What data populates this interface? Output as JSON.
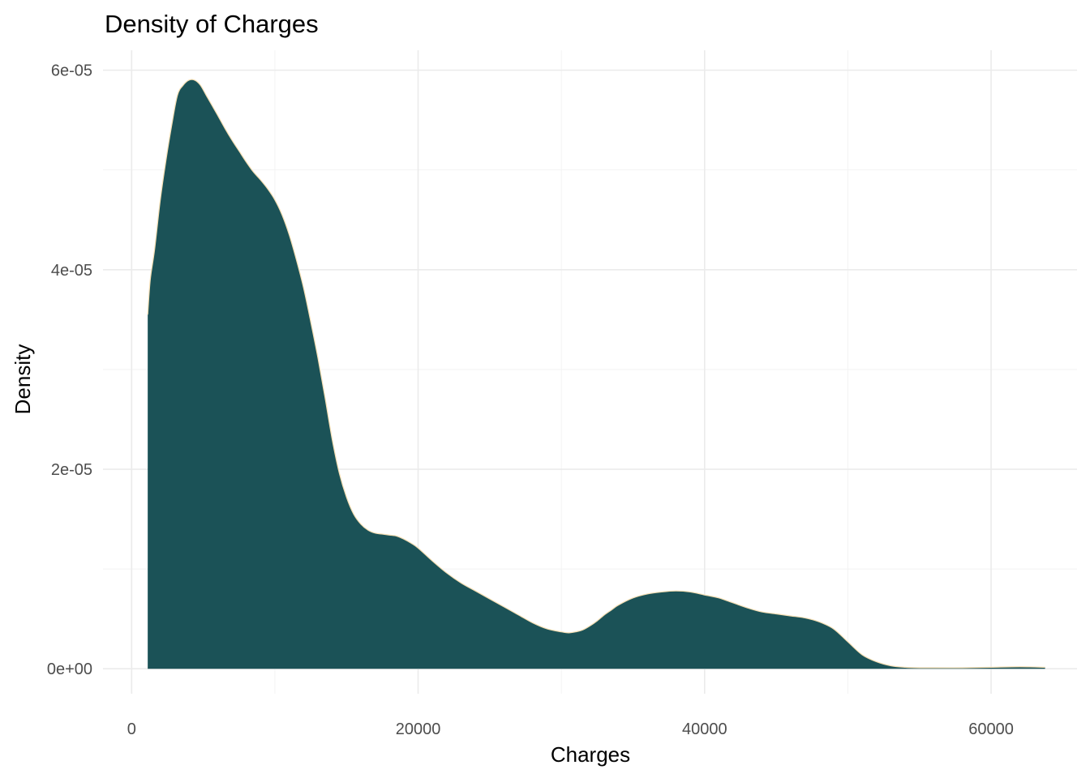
{
  "chart_data": {
    "type": "area",
    "title": "Density of Charges",
    "xlabel": "Charges",
    "ylabel": "Density",
    "xlim": [
      -2000,
      66000
    ],
    "ylim": [
      -2.5e-06,
      6.2e-05
    ],
    "x_ticks": [
      {
        "value": 0,
        "label": "0"
      },
      {
        "value": 20000,
        "label": "20000"
      },
      {
        "value": 40000,
        "label": "40000"
      },
      {
        "value": 60000,
        "label": "60000"
      }
    ],
    "y_ticks": [
      {
        "value": 0,
        "label": "0e+00"
      },
      {
        "value": 2e-05,
        "label": "2e-05"
      },
      {
        "value": 4e-05,
        "label": "4e-05"
      },
      {
        "value": 6e-05,
        "label": "6e-05"
      }
    ],
    "x_minor_ticks": [
      10000,
      30000,
      50000
    ],
    "y_minor_ticks": [
      1e-05,
      3e-05,
      5e-05
    ],
    "grid": true,
    "legend": "none",
    "fill_color": "#1b5257",
    "outline_color": "#f5deb3",
    "series": [
      {
        "x": [
          1122,
          1300,
          1600,
          2000,
          2400,
          2800,
          3200,
          3600,
          4000,
          4400,
          4800,
          5200,
          5600,
          6000,
          6500,
          7000,
          7500,
          8000,
          8500,
          9000,
          9500,
          10000,
          10500,
          11000,
          11500,
          12000,
          12500,
          13000,
          13500,
          14000,
          14500,
          15000,
          15500,
          16000,
          16500,
          17000,
          17500,
          18000,
          18500,
          19000,
          19500,
          20000,
          21000,
          22000,
          23000,
          24000,
          25000,
          26000,
          27000,
          28000,
          29000,
          30000,
          30500,
          31000,
          31500,
          32000,
          32500,
          33000,
          33500,
          34000,
          35000,
          36000,
          37000,
          38000,
          39000,
          40000,
          41000,
          42000,
          43000,
          44000,
          45000,
          46000,
          47000,
          48000,
          49000,
          50000,
          51000,
          52000,
          53000,
          54000,
          55000,
          56000,
          58000,
          60000,
          62000,
          63770
        ],
        "y": [
          3.55e-05,
          3.9e-05,
          4.2e-05,
          4.7e-05,
          5.1e-05,
          5.45e-05,
          5.75e-05,
          5.85e-05,
          5.9e-05,
          5.9e-05,
          5.85e-05,
          5.75e-05,
          5.65e-05,
          5.55e-05,
          5.42e-05,
          5.3e-05,
          5.19e-05,
          5.08e-05,
          4.98e-05,
          4.9e-05,
          4.81e-05,
          4.7e-05,
          4.55e-05,
          4.35e-05,
          4.1e-05,
          3.82e-05,
          3.48e-05,
          3.12e-05,
          2.72e-05,
          2.3e-05,
          1.96e-05,
          1.72e-05,
          1.55e-05,
          1.45e-05,
          1.39e-05,
          1.36e-05,
          1.35e-05,
          1.34e-05,
          1.33e-05,
          1.3e-05,
          1.26e-05,
          1.21e-05,
          1.08e-05,
          9.6e-06,
          8.6e-06,
          7.8e-06,
          7e-06,
          6.2e-06,
          5.4e-06,
          4.6e-06,
          4e-06,
          3.7e-06,
          3.6e-06,
          3.7e-06,
          3.9e-06,
          4.3e-06,
          4.8e-06,
          5.4e-06,
          5.9e-06,
          6.4e-06,
          7.1e-06,
          7.5e-06,
          7.7e-06,
          7.8e-06,
          7.7e-06,
          7.4e-06,
          7.1e-06,
          6.6e-06,
          6.1e-06,
          5.7e-06,
          5.5e-06,
          5.3e-06,
          5.1e-06,
          4.7e-06,
          4e-06,
          2.7e-06,
          1.4e-06,
          7e-07,
          3e-07,
          1.5e-07,
          1e-07,
          1e-07,
          1e-07,
          1.5e-07,
          2e-07,
          1.5e-07
        ]
      }
    ]
  }
}
